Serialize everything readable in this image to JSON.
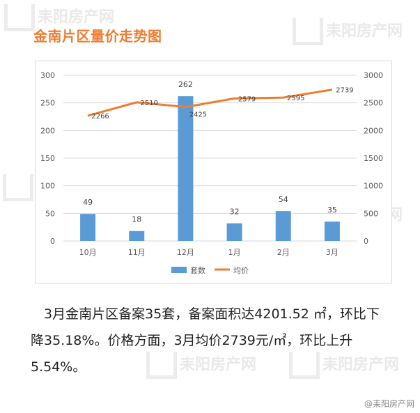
{
  "watermark": {
    "text": "耒阳房产网"
  },
  "title": "金南片区量价走势图",
  "chart_data": {
    "type": "bar+line",
    "categories": [
      "10月",
      "11月",
      "12月",
      "1月",
      "2月",
      "3月"
    ],
    "series": [
      {
        "name": "套数",
        "type": "bar",
        "axis": "left",
        "color": "#5b9bd5",
        "values": [
          49,
          18,
          262,
          32,
          54,
          35
        ]
      },
      {
        "name": "均价",
        "type": "line",
        "axis": "right",
        "color": "#ed7d31",
        "values": [
          2266,
          2510,
          2425,
          2579,
          2595,
          2739
        ]
      }
    ],
    "y_left": {
      "min": 0,
      "max": 300,
      "ticks": [
        "0",
        "50",
        "100",
        "150",
        "200",
        "250",
        "300"
      ]
    },
    "y_right": {
      "min": 0,
      "max": 3000,
      "ticks": [
        "0",
        "500",
        "1000",
        "1500",
        "2000",
        "2500",
        "3000"
      ]
    },
    "grid": true,
    "legend": "bottom"
  },
  "paragraph": "3月金南片区备案35套，备案面积达4201.52 ㎡，环比下降35.18%。价格方面，3月均价2739元/㎡，环比上升5.54%。",
  "corner_mark": "@耒阳房产网"
}
